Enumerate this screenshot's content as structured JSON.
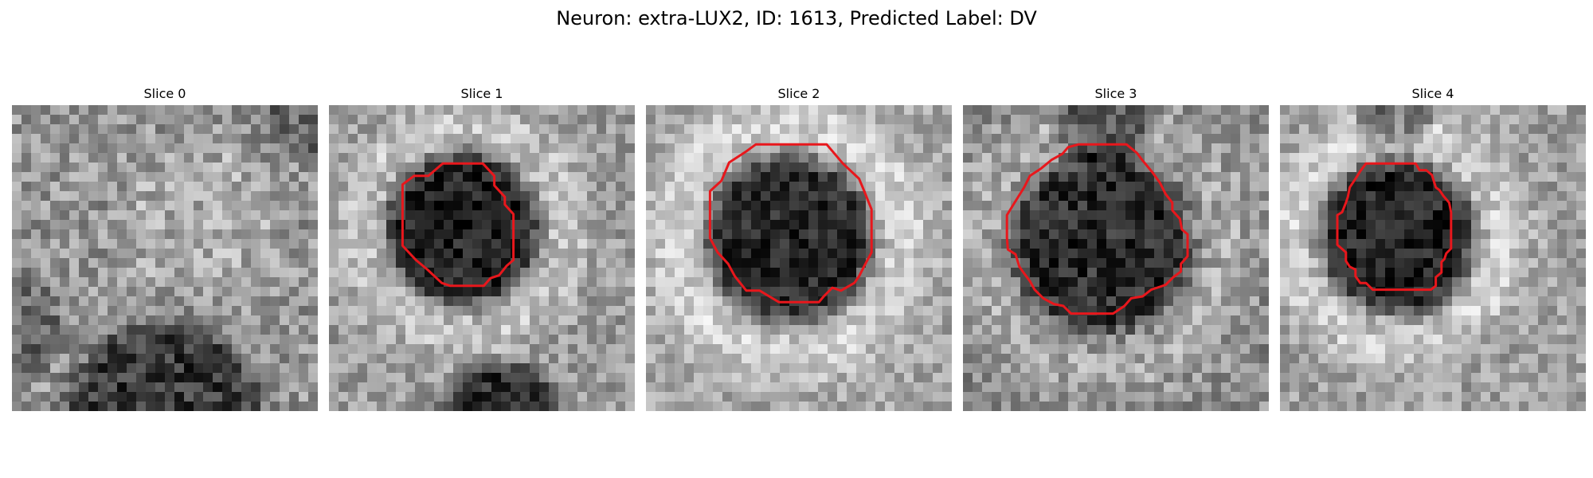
{
  "figure": {
    "title": "Neuron: extra-LUX2, ID: 1613, Predicted Label: DV"
  },
  "slices": [
    {
      "label": "Slice 0",
      "has_outline": false
    },
    {
      "label": "Slice 1",
      "has_outline": true
    },
    {
      "label": "Slice 2",
      "has_outline": true
    },
    {
      "label": "Slice 3",
      "has_outline": true
    },
    {
      "label": "Slice 4",
      "has_outline": true
    }
  ],
  "style": {
    "outline_color": "#e8171c",
    "colormap": "grayscale"
  }
}
